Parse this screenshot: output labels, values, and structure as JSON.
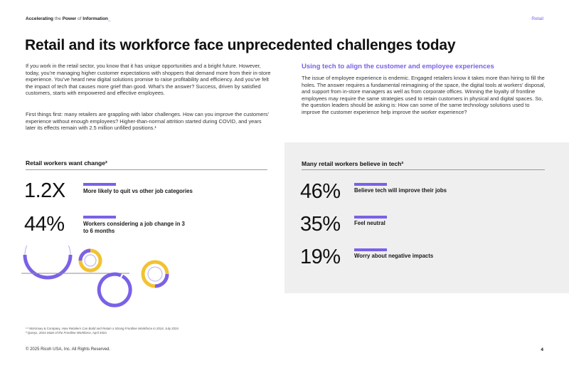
{
  "header": {
    "left_bold": "Accelerating",
    "left_light": "the",
    "left_bold2": "Power",
    "left_light2": "of",
    "left_bold3": "Information",
    "right": "Retail"
  },
  "title": "Retail and its workforce face unprecedented challenges today",
  "left_col": {
    "p1": "If you work in the retail sector, you know that it has unique opportunities and a bright future. However, today, you’re managing higher customer expectations with shoppers that demand more from their in-store experience. You’ve heard new digital solutions promise to raise profitability and efficiency. And you’ve felt the impact of tech that causes more grief than good. What’s the answer? Success, driven by satisfied customers, starts with empowered and effective employees.",
    "p2": "First things first: many retailers are grappling with labor challenges. How can you improve the customers’ experience without enough employees? Higher-than-normal attrition started during COVID, and years later its effects remain with 2.5 million unfilled positions.¹"
  },
  "right_col": {
    "subhead": "Using tech to align the customer and employee experiences",
    "p1": "The issue of employee experience is endemic. Engaged retailers know it takes more than hiring to fill the holes. The answer requires a fundamental reimagining of the space, the digital tools at workers’ disposal, and support from in-store managers as well as from corporate offices. Winning the loyalty of frontline employees may require the same strategies used to retain customers in physical and digital spaces. So, the question leaders should be asking is: How can some of the same technology solutions used to improve the customer experience help improve the worker experience?"
  },
  "stats_left": {
    "title": "Retail workers want change²",
    "items": [
      {
        "value": "1.2X",
        "label": "More likely to quit vs other job categories"
      },
      {
        "value": "44%",
        "label": "Workers considering a job change in 3 to 6 months"
      }
    ]
  },
  "stats_right": {
    "title": "Many retail workers believe in tech³",
    "items": [
      {
        "value": "46%",
        "label": "Believe tech will improve their jobs"
      },
      {
        "value": "35%",
        "label": "Feel neutral"
      },
      {
        "value": "19%",
        "label": "Worry about negative impacts"
      }
    ]
  },
  "footnotes": {
    "f1_prefix": "¹ ² McKinsey & Company,",
    "f1_title": "How Retailers Can Build and Retain a Strong Frontline Workforce in 2024,",
    "f1_date": "July 2024",
    "f2_prefix": "³ Quinyx,",
    "f2_title": "2024 State of the Frontline Workforce,",
    "f2_date": "April 2024"
  },
  "footer": {
    "copyright": "© 2025 Ricoh USA, Inc. All Rights Reserved.",
    "page": "4"
  },
  "colors": {
    "accent": "#7b61e8",
    "gold": "#f2c230",
    "panel": "#efefef"
  }
}
